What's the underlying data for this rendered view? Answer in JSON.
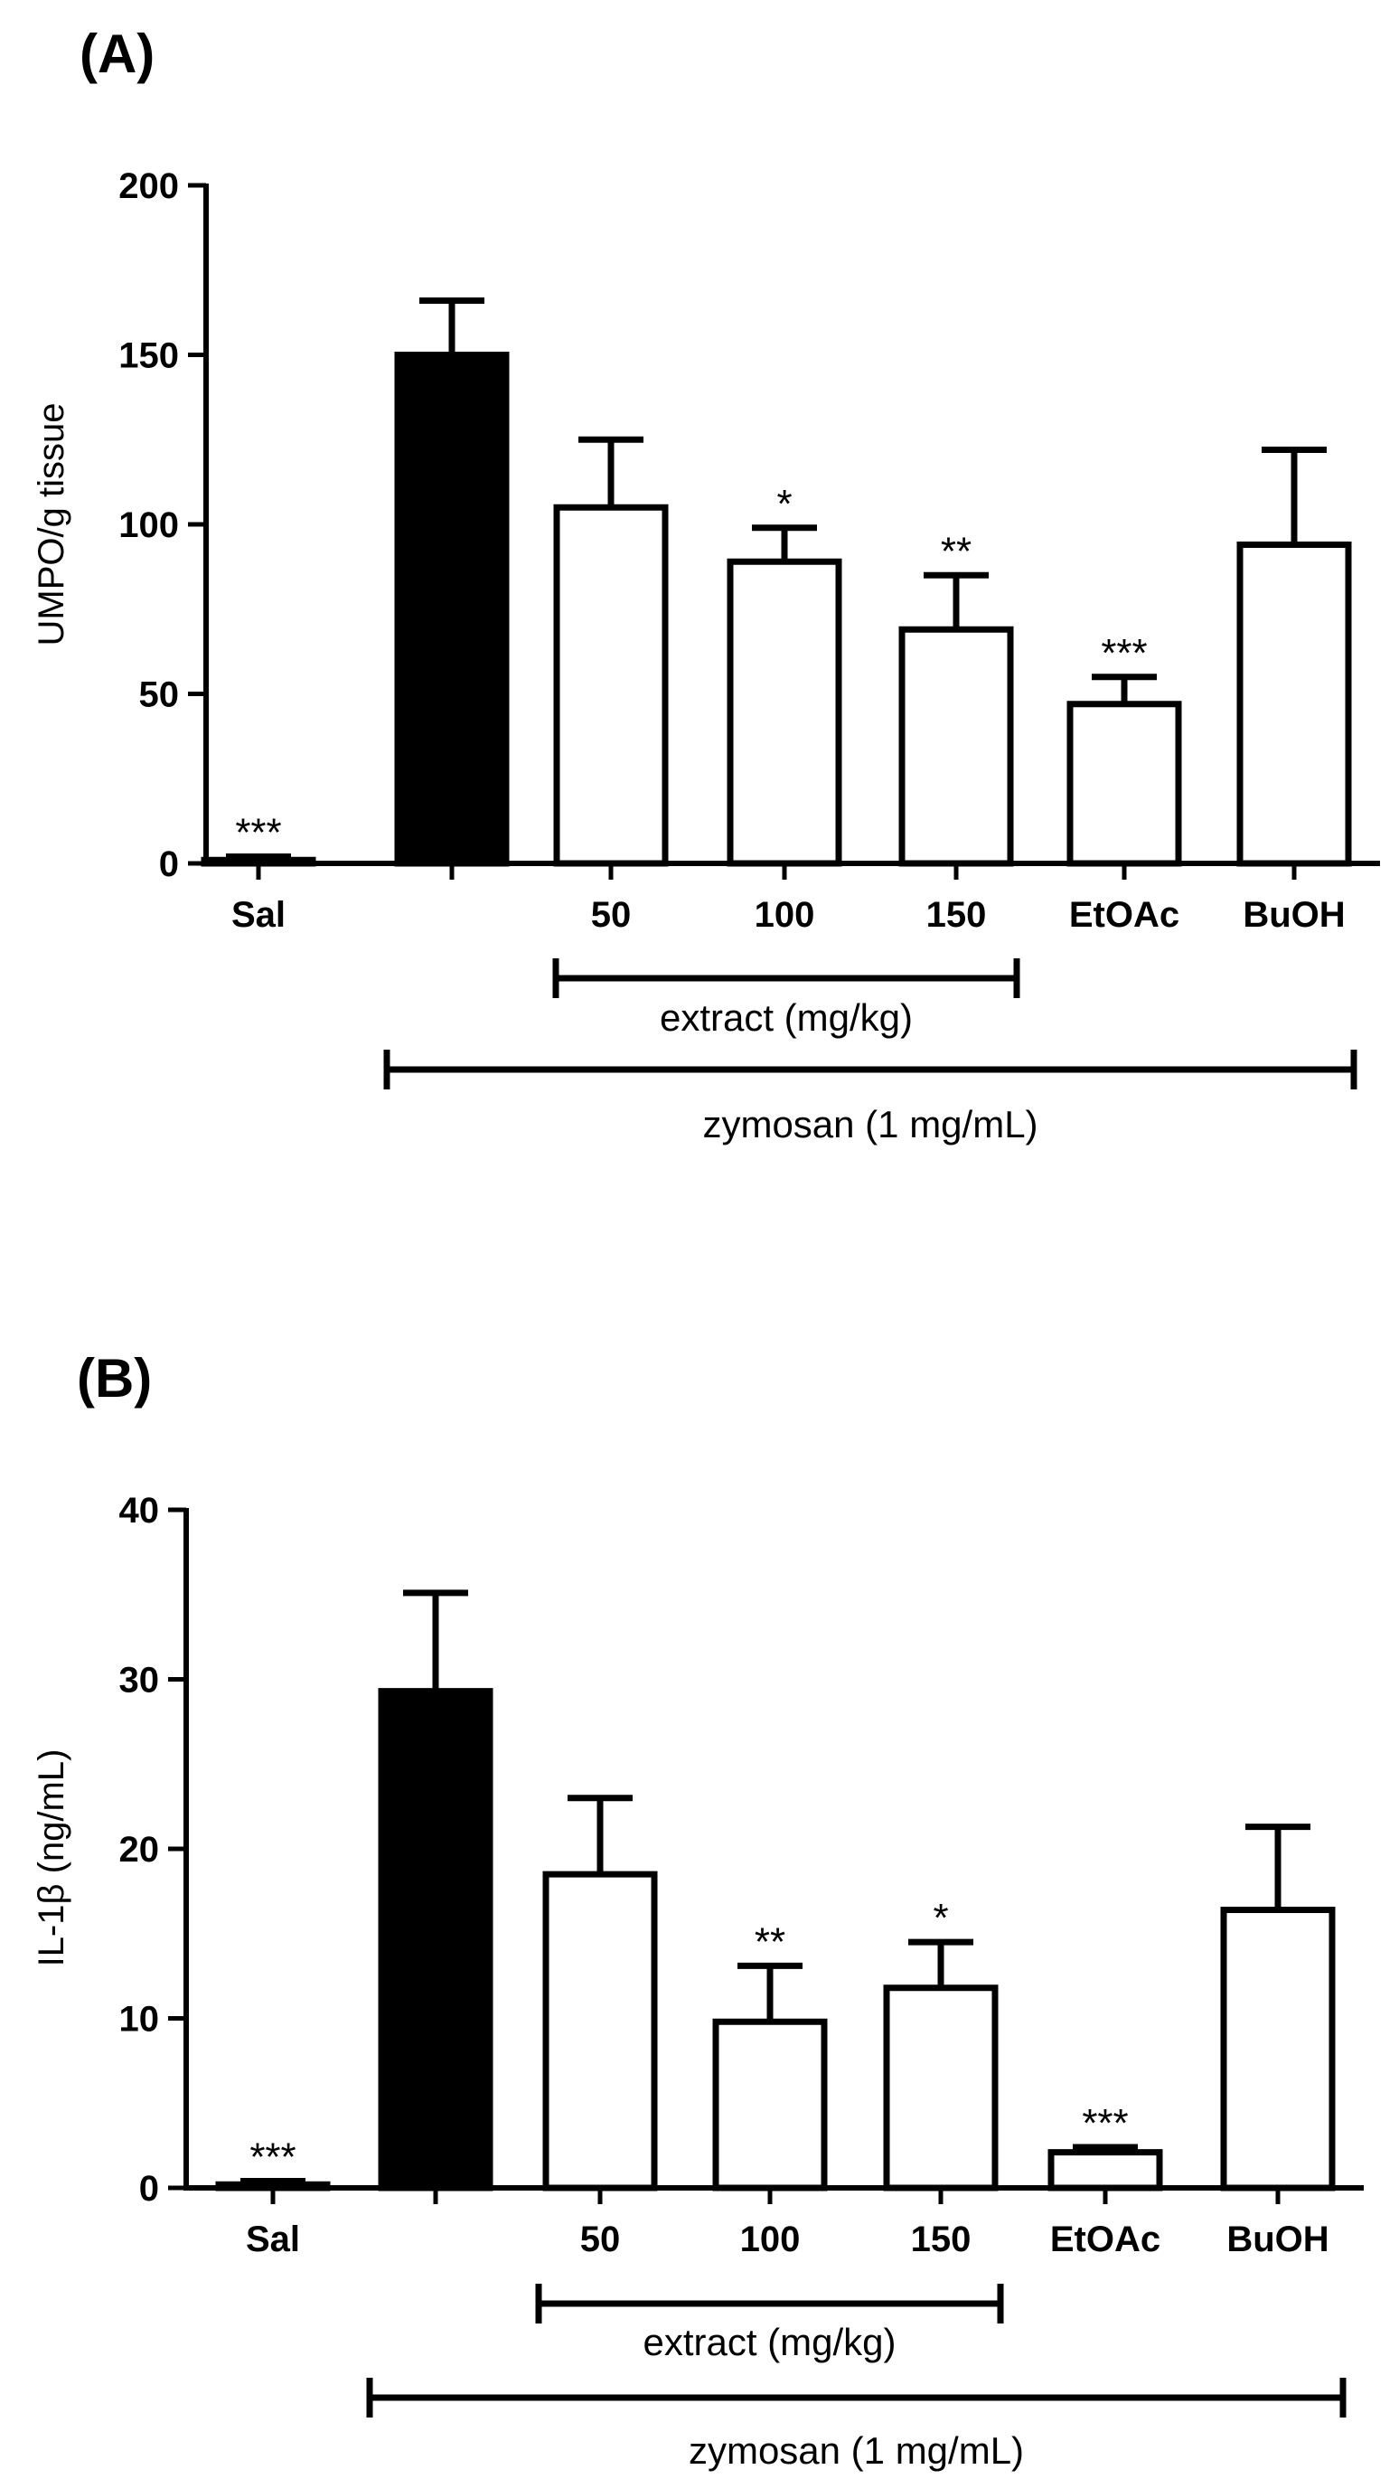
{
  "chart_data": [
    {
      "type": "bar",
      "panel_label": "(A)",
      "ylabel": "UMPO/g tissue",
      "xlabel": "",
      "ylim": [
        0,
        200
      ],
      "yticks": [
        0,
        50,
        100,
        150,
        200
      ],
      "categories": [
        "Sal",
        "",
        "50",
        "100",
        "150",
        "EtOAc",
        "BuOH"
      ],
      "values": [
        1,
        150,
        105,
        89,
        69,
        47,
        94
      ],
      "errors": [
        1,
        16,
        20,
        10,
        16,
        8,
        28
      ],
      "fills": [
        "#ffffff",
        "#000000",
        "#ffffff",
        "#ffffff",
        "#ffffff",
        "#ffffff",
        "#ffffff"
      ],
      "significance": [
        "***",
        "",
        "",
        "*",
        "**",
        "***",
        ""
      ],
      "groups": [
        {
          "label": "extract (mg/kg)",
          "from": 2,
          "to": 4
        },
        {
          "label": "zymosan (1 mg/mL)",
          "from": 1,
          "to": 6
        }
      ]
    },
    {
      "type": "bar",
      "panel_label": "(B)",
      "ylabel": "IL-1β (ng/mL)",
      "xlabel": "",
      "ylim": [
        0,
        40
      ],
      "yticks": [
        0,
        10,
        20,
        30,
        40
      ],
      "categories": [
        "Sal",
        "",
        "50",
        "100",
        "150",
        "EtOAc",
        "BuOH"
      ],
      "values": [
        0.2,
        29.3,
        18.5,
        9.8,
        11.8,
        2.1,
        16.4
      ],
      "errors": [
        0.2,
        5.8,
        4.5,
        3.3,
        2.7,
        0.3,
        4.9
      ],
      "fills": [
        "#ffffff",
        "#000000",
        "#ffffff",
        "#ffffff",
        "#ffffff",
        "#ffffff",
        "#ffffff"
      ],
      "significance": [
        "***",
        "",
        "",
        "**",
        "*",
        "***",
        ""
      ],
      "groups": [
        {
          "label": "extract (mg/kg)",
          "from": 2,
          "to": 4
        },
        {
          "label": "zymosan (1 mg/mL)",
          "from": 1,
          "to": 6
        }
      ]
    }
  ]
}
